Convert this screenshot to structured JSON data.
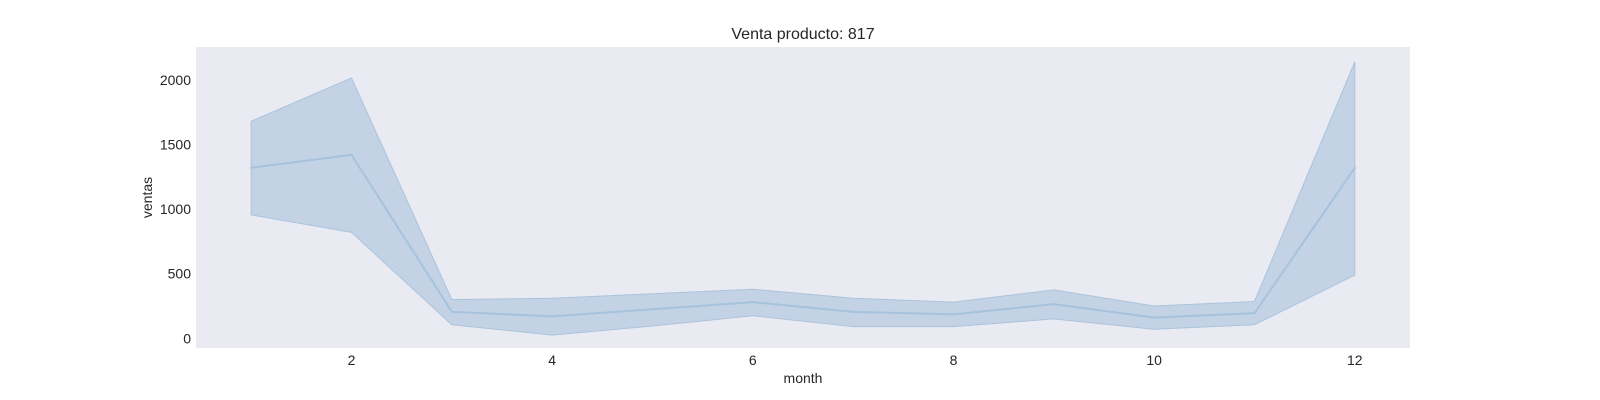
{
  "chart_data": {
    "type": "line",
    "title": "Venta producto: 817",
    "xlabel": "month",
    "ylabel": "ventas",
    "x": [
      1,
      2,
      3,
      4,
      5,
      6,
      7,
      8,
      9,
      10,
      11,
      12
    ],
    "series": [
      {
        "values": [
          1320,
          1420,
          205,
          170,
          225,
          280,
          205,
          185,
          265,
          160,
          195,
          1320
        ],
        "ci_lower": [
          955,
          820,
          105,
          25,
          95,
          175,
          90,
          90,
          150,
          70,
          105,
          490
        ],
        "ci_upper": [
          1680,
          2015,
          300,
          310,
          345,
          380,
          310,
          280,
          375,
          250,
          285,
          2140
        ]
      }
    ],
    "xticks": [
      2,
      4,
      6,
      8,
      10,
      12
    ],
    "yticks": [
      0,
      500,
      1000,
      1500,
      2000
    ],
    "xlim": [
      0.45,
      12.55
    ],
    "ylim": [
      -75,
      2255
    ],
    "grid": false,
    "colors": {
      "line": "#a6c2dd",
      "band": "#c3d3e5",
      "band_edge": "#aac4dd",
      "plot_bg": "#eaeaf2"
    }
  }
}
